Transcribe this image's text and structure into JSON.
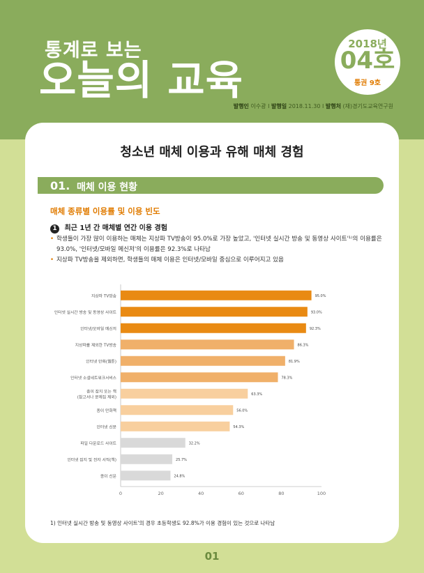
{
  "header": {
    "subtitle": "통계로 보는",
    "title": "오늘의 교육",
    "badge": {
      "year": "2018년",
      "issue": "04호",
      "total": "통권 9호"
    },
    "publisher_label": "발행인",
    "publisher": "이수광",
    "date_label": "발행일",
    "date": "2018.11.30",
    "org_label": "발행처",
    "org": "(재)경기도교육연구원",
    "sep": "I"
  },
  "colors": {
    "green": "#8aac5c",
    "light_green": "#d2df96",
    "orange": "#e98a13",
    "light_orange": "#f0b06a",
    "pale_orange": "#f8cf9e",
    "gray": "#d9d9d9"
  },
  "main": {
    "title": "청소년 매체 이용과 유해 매체 경험",
    "section_num": "01.",
    "section_title": "매체 이용 현황",
    "subhead": "매체 종류별 이용률 및 이용 빈도",
    "item_num": "1",
    "item_title": "최근 1년 간 매체별 연간 이용 경험",
    "bullets": [
      "학생들이 가장 많이 이용하는 매체는 지상파 TV방송이 95.0%로 가장 높았고, '인터넷 실시간 방송 및 동영상 사이트'¹⁾의 이용률은 93.0%, '인터넷/모바일 메신저'의 이용률은 92.3%로 나타남",
      "지상파 TV방송을 제외하면, 학생들의 매체 이용은 인터넷/모바일 중심으로 이루어지고 있음"
    ],
    "footnote": "1) 인터넷 실시간 방송 및 동영상 사이트'의 경우 초등학생도 92.8%가 이용 경험이 있는 것으로 나타남"
  },
  "chart_data": {
    "type": "bar",
    "orientation": "horizontal",
    "categories": [
      "지상파 TV방송",
      "인터넷 실시간 방송 및 동영상 사이트",
      "인터넷/모바일 메신저",
      "지상파를 제외한 TV방송",
      "인터넷 만화(웹툰)",
      "인터넷 소셜네트워크서비스",
      "종이 잡지 또는 책|(참고서나 문제집 제외)",
      "종이 만화책",
      "인터넷 신문",
      "파일 다운로드 사이트",
      "인터넷 잡지 및 전자 서적(책)",
      "종이 신문"
    ],
    "values": [
      95.0,
      93.0,
      92.3,
      86.3,
      81.9,
      78.3,
      63.3,
      56.0,
      54.3,
      32.2,
      25.7,
      24.8
    ],
    "labels": [
      "95.0%",
      "93.0%",
      "92.3%",
      "86.3%",
      "81.9%",
      "78.3%",
      "63.3%",
      "56.0%",
      "54.3%",
      "32.2%",
      "25.7%",
      "24.8%"
    ],
    "bar_colors": [
      "#e98a13",
      "#e98a13",
      "#e98a13",
      "#f0b06a",
      "#f0b06a",
      "#f0b06a",
      "#f8cf9e",
      "#f8cf9e",
      "#f8cf9e",
      "#d9d9d9",
      "#d9d9d9",
      "#d9d9d9"
    ],
    "xticks": [
      "0",
      "20",
      "40",
      "60",
      "80",
      "100"
    ],
    "xlim": [
      0,
      100
    ],
    "grid": false
  },
  "page_number": "01"
}
